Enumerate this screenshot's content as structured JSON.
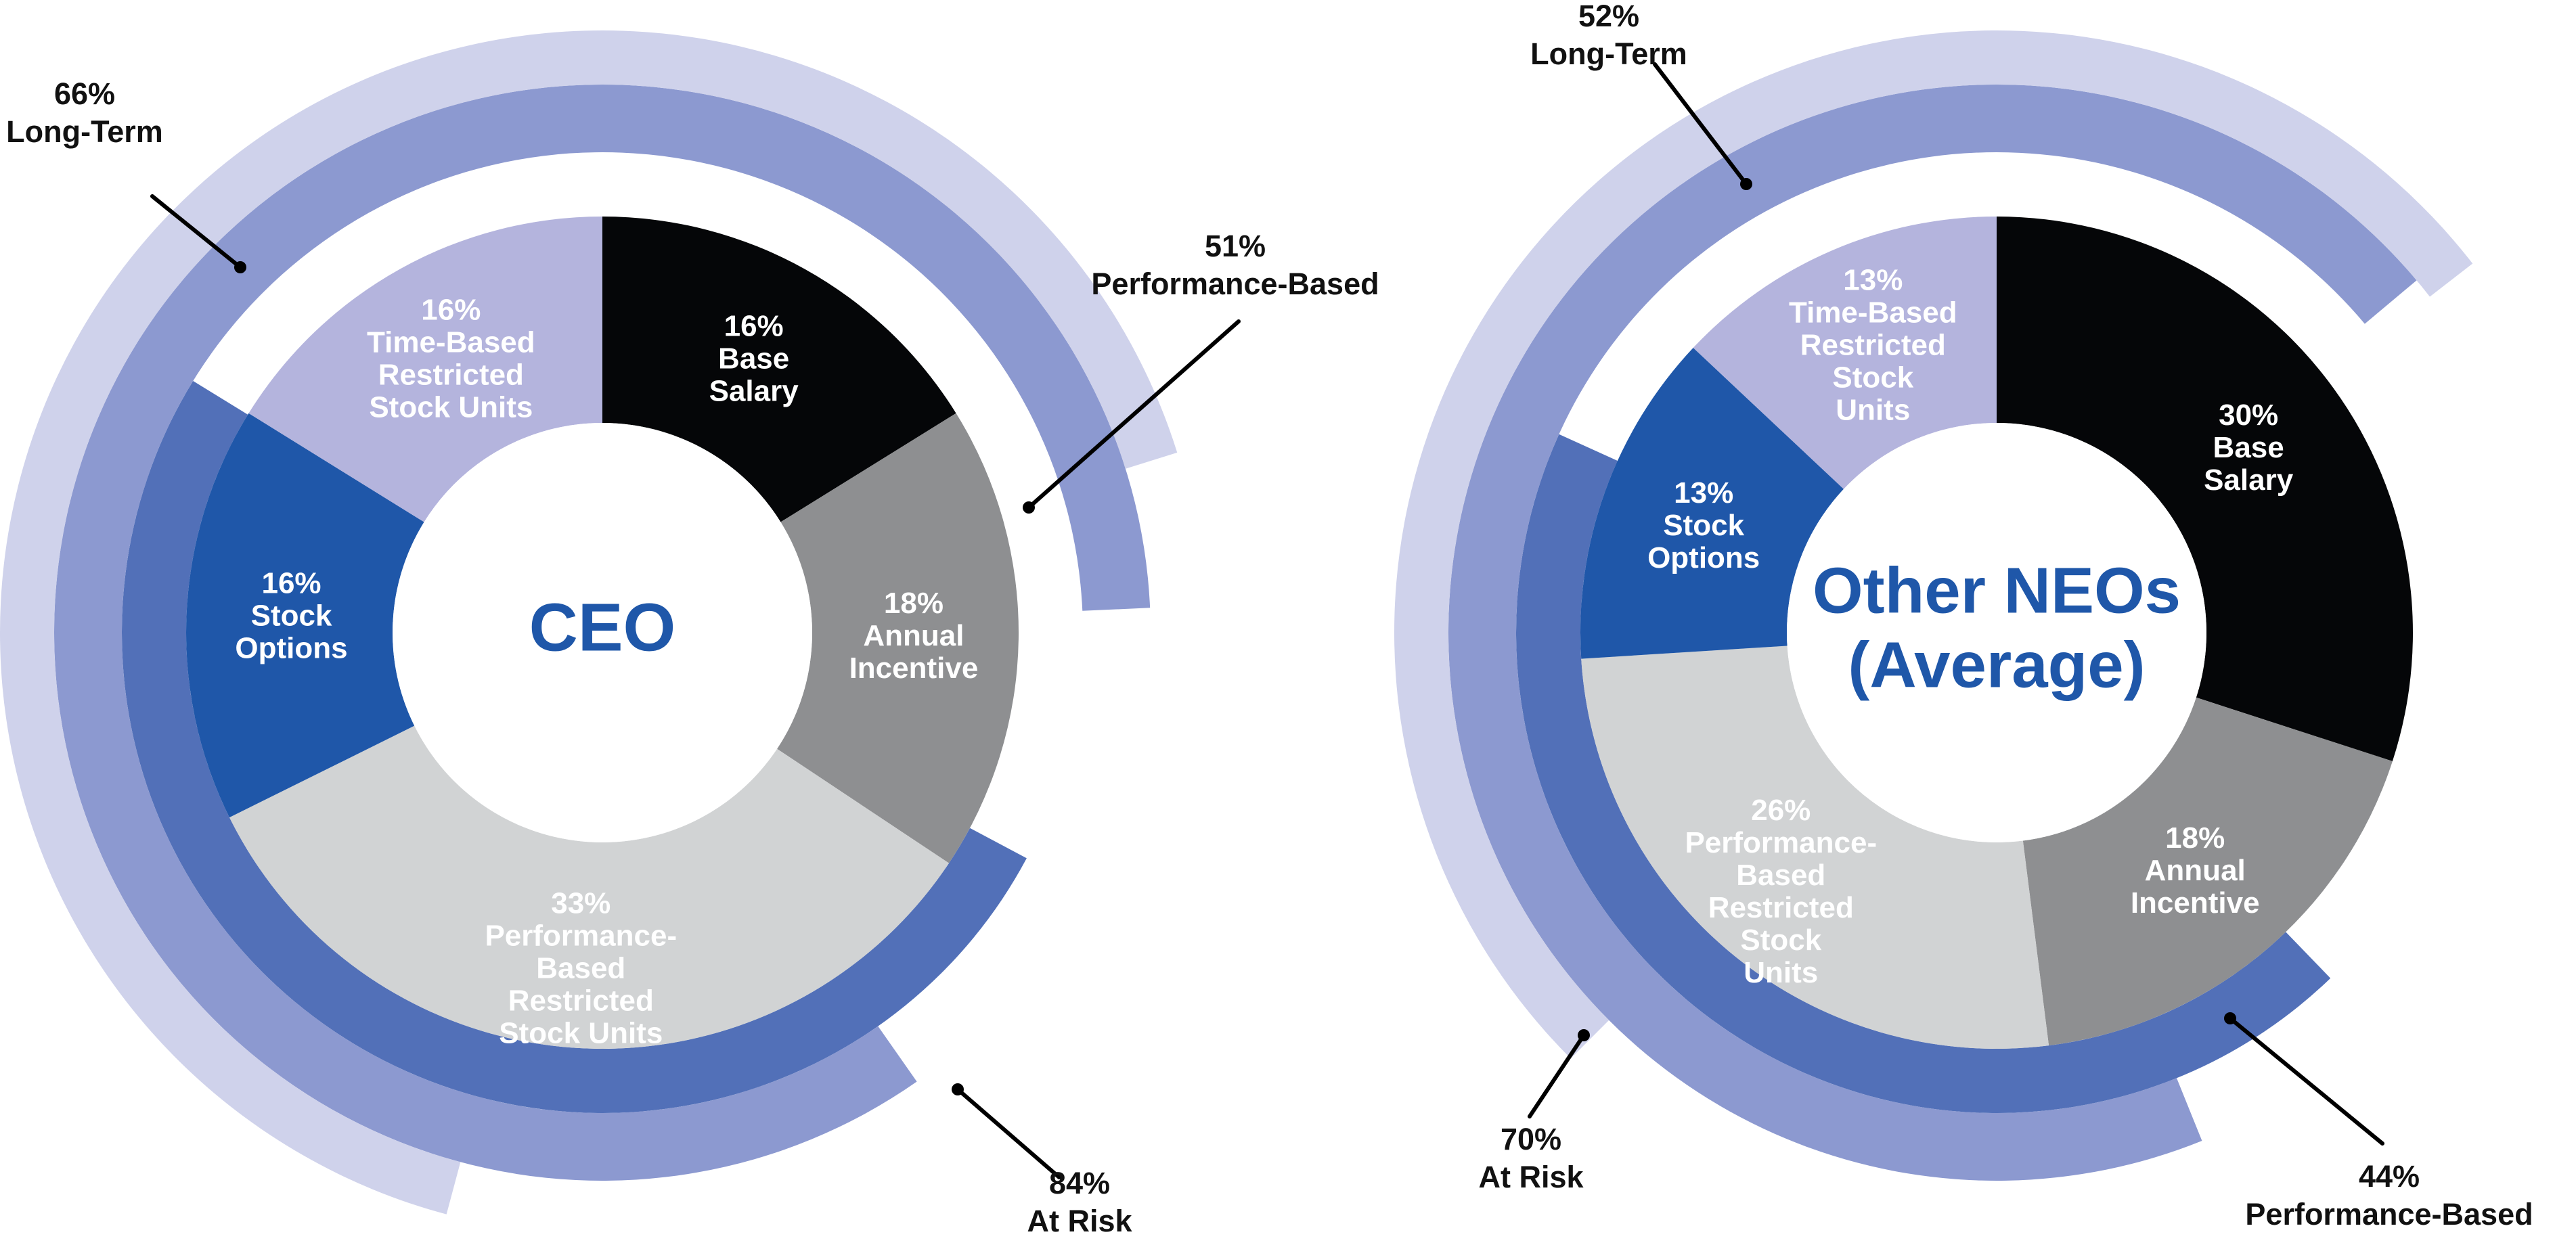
{
  "colors": {
    "base_salary": "#050608",
    "annual_incentive": "#8e8f91",
    "performance_rsu": "#d1d3d4",
    "stock_options": "#1f57a9",
    "time_rsu": "#b4b4dd",
    "center_text": "#1f57a9",
    "segment_text_light": "#ffffff",
    "performance_based_ring": "#5270b8",
    "at_risk_ring": "#8c99d0",
    "long_term_ring": "#cfd2eb",
    "callout_text": "#111111"
  },
  "chart_data": [
    {
      "type": "pie",
      "center_title": "CEO",
      "segments": [
        {
          "key": "base_salary",
          "lines": [
            "16%",
            "Base",
            "Salary"
          ],
          "value": 16
        },
        {
          "key": "annual_incentive",
          "lines": [
            "18%",
            "Annual",
            "Incentive"
          ],
          "value": 18
        },
        {
          "key": "performance_rsu",
          "lines": [
            "33%",
            "Performance-",
            "Based",
            "Restricted",
            "Stock Units"
          ],
          "value": 33
        },
        {
          "key": "stock_options",
          "lines": [
            "16%",
            "Stock",
            "Options"
          ],
          "value": 16
        },
        {
          "key": "time_rsu",
          "lines": [
            "16%",
            "Time-Based",
            "Restricted",
            "Stock Units"
          ],
          "value": 16
        }
      ],
      "rings": [
        {
          "name": "Performance-Based",
          "value": 51
        },
        {
          "name": "At Risk",
          "value": 84
        },
        {
          "name": "Long-Term",
          "value": 66
        }
      ],
      "callouts": {
        "long_term": [
          "66%",
          "Long-Term"
        ],
        "performance": [
          "51%",
          "Performance-Based"
        ],
        "at_risk": [
          "84%",
          "At Risk"
        ]
      }
    },
    {
      "type": "pie",
      "center_title": [
        "Other NEOs",
        "(Average)"
      ],
      "segments": [
        {
          "key": "base_salary",
          "lines": [
            "30%",
            "Base",
            "Salary"
          ],
          "value": 30
        },
        {
          "key": "annual_incentive",
          "lines": [
            "18%",
            "Annual",
            "Incentive"
          ],
          "value": 18
        },
        {
          "key": "performance_rsu",
          "lines": [
            "26%",
            "Performance-",
            "Based",
            "Restricted",
            "Stock",
            "Units"
          ],
          "value": 26
        },
        {
          "key": "stock_options",
          "lines": [
            "13%",
            "Stock",
            "Options"
          ],
          "value": 13
        },
        {
          "key": "time_rsu",
          "lines": [
            "13%",
            "Time-Based",
            "Restricted",
            "Stock",
            "Units"
          ],
          "value": 13
        }
      ],
      "rings": [
        {
          "name": "Performance-Based",
          "value": 44
        },
        {
          "name": "At Risk",
          "value": 70
        },
        {
          "name": "Long-Term",
          "value": 52
        }
      ],
      "callouts": {
        "long_term": [
          "52%",
          "Long-Term"
        ],
        "performance": [
          "44%",
          "Performance-Based"
        ],
        "at_risk": [
          "70%",
          "At Risk"
        ]
      }
    }
  ]
}
